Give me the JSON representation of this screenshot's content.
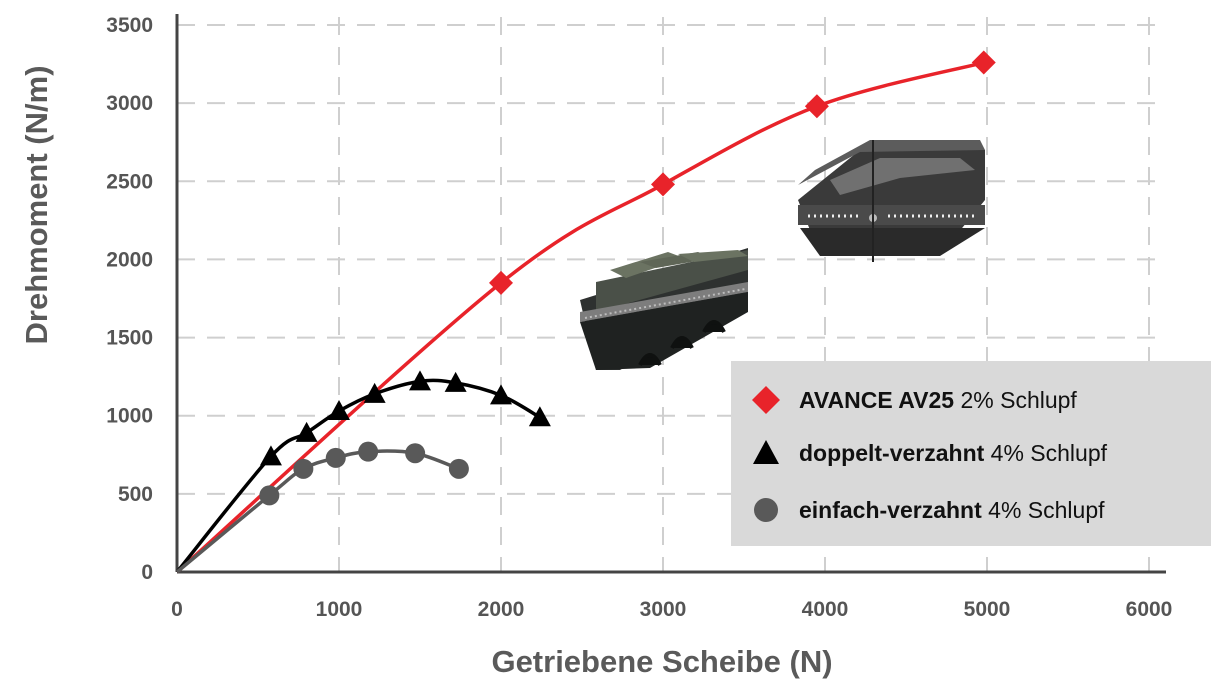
{
  "chart_data": {
    "type": "line",
    "xlabel": "Getriebene Scheibe (N)",
    "ylabel": "Drehmoment  (N/m)",
    "xlim": [
      0,
      6000
    ],
    "ylim": [
      0,
      3500
    ],
    "x_ticks": [
      "0",
      "1000",
      "2000",
      "3000",
      "4000",
      "5000",
      "6000"
    ],
    "y_ticks": [
      "0",
      "500",
      "1000",
      "1500",
      "2000",
      "2500",
      "3000",
      "3500"
    ],
    "grid": "dashed",
    "legend_position": "bottom-right",
    "series": [
      {
        "name_bold": "AVANCE AV25",
        "name_rest": " 2% Schlupf",
        "color": "#e8232a",
        "marker": "diamond",
        "x": [
          0,
          2000,
          3000,
          3950,
          4980
        ],
        "y": [
          0,
          1850,
          2480,
          2980,
          3260
        ]
      },
      {
        "name_bold": "doppelt-verzahnt",
        "name_rest": " 4% Schlupf",
        "color": "#000000",
        "marker": "triangle",
        "x": [
          0,
          580,
          800,
          1000,
          1220,
          1500,
          1720,
          2000,
          2240
        ],
        "y": [
          0,
          740,
          890,
          1030,
          1140,
          1220,
          1210,
          1130,
          990
        ]
      },
      {
        "name_bold": "einfach-verzahnt",
        "name_rest": " 4% Schlupf",
        "color": "#595959",
        "marker": "circle",
        "x": [
          0,
          570,
          780,
          980,
          1180,
          1470,
          1740
        ],
        "y": [
          0,
          490,
          660,
          730,
          770,
          760,
          660
        ]
      }
    ]
  }
}
